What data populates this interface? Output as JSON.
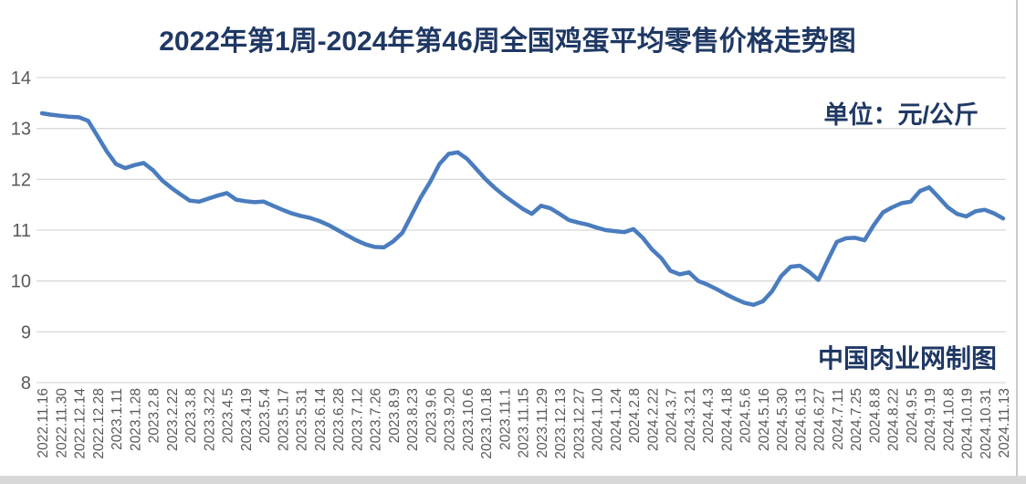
{
  "chart": {
    "title": "2022年第1周-2024年第46周全国鸡蛋平均零售价格走势图",
    "unit_label": "单位：元/公斤",
    "watermark": "中国肉业网制图",
    "colors": {
      "title_text": "#1F3864",
      "line": "#4A7CBE",
      "gridline": "#D9D9D9",
      "axis_text": "#595959",
      "background": "#FFFFFF"
    }
  },
  "chart_data": {
    "type": "line",
    "title": "2022年第1周-2024年第46周全国鸡蛋平均零售价格走势图",
    "unit": "元/公斤",
    "xlabel": "",
    "ylabel": "",
    "ylim": [
      8,
      14
    ],
    "y_ticks": [
      14,
      13,
      12,
      11,
      10,
      9,
      8
    ],
    "grid": "horizontal",
    "legend_position": "none",
    "x_labels_every_n_points": 2,
    "x_labels": [
      "2022.11.16",
      "2022.11.30",
      "2022.12.14",
      "2022.12.28",
      "2023.1.11",
      "2023.1.28",
      "2023.2.8",
      "2023.2.22",
      "2023.3.8",
      "2023.3.22",
      "2023.4.5",
      "2023.4.19",
      "2023.5.4",
      "2023.5.17",
      "2023.5.31",
      "2023.6.14",
      "2023.6.28",
      "2023.7.12",
      "2023.7.26",
      "2023.8.9",
      "2023.8.23",
      "2023.9.6",
      "2023.9.20",
      "2023.10.6",
      "2023.10.18",
      "2023.11.1",
      "2023.11.15",
      "2023.11.29",
      "2023.12.13",
      "2023.12.27",
      "2024.1.10",
      "2024.1.24",
      "2024.2.8",
      "2024.2.22",
      "2024.3.7",
      "2024.3.21",
      "2024.4.3",
      "2024.4.18",
      "2024.5.6",
      "2024.5.16",
      "2024.5.30",
      "2024.6.13",
      "2024.6.27",
      "2024.7.11",
      "2024.7.25",
      "2024.8.8",
      "2024.8.22",
      "2024.9.5",
      "2024.9.19",
      "2024.10.8",
      "2024.10.19",
      "2024.10.31",
      "2024.11.13"
    ],
    "series": [
      {
        "name": "全国鸡蛋平均零售价格(元/公斤)",
        "values": [
          13.3,
          13.27,
          13.25,
          13.23,
          13.22,
          13.15,
          12.85,
          12.55,
          12.3,
          12.22,
          12.28,
          12.32,
          12.18,
          11.98,
          11.83,
          11.7,
          11.58,
          11.56,
          11.62,
          11.68,
          11.73,
          11.6,
          11.57,
          11.55,
          11.56,
          11.48,
          11.4,
          11.33,
          11.28,
          11.24,
          11.18,
          11.1,
          11.0,
          10.9,
          10.8,
          10.72,
          10.67,
          10.66,
          10.78,
          10.95,
          11.3,
          11.65,
          11.95,
          12.3,
          12.5,
          12.53,
          12.4,
          12.2,
          12.0,
          11.83,
          11.68,
          11.55,
          11.42,
          11.32,
          11.48,
          11.43,
          11.32,
          11.2,
          11.15,
          11.11,
          11.05,
          11.0,
          10.98,
          10.96,
          11.02,
          10.85,
          10.62,
          10.45,
          10.2,
          10.13,
          10.17,
          10.0,
          9.93,
          9.84,
          9.74,
          9.65,
          9.57,
          9.53,
          9.6,
          9.8,
          10.1,
          10.28,
          10.3,
          10.18,
          10.02,
          10.4,
          10.77,
          10.84,
          10.85,
          10.8,
          11.1,
          11.35,
          11.45,
          11.53,
          11.56,
          11.77,
          11.84,
          11.65,
          11.45,
          11.32,
          11.27,
          11.37,
          11.4,
          11.33,
          11.23
        ]
      }
    ]
  }
}
